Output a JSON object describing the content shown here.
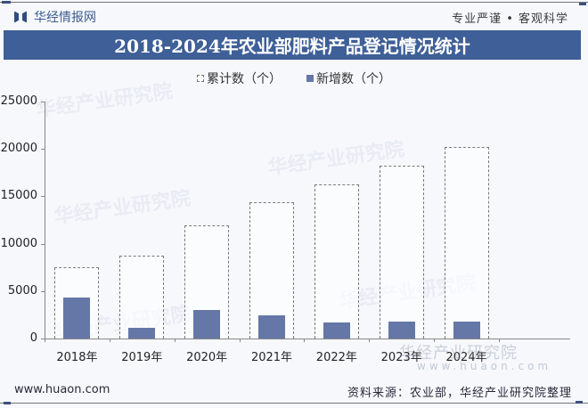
{
  "header": {
    "brand": "华经情报网",
    "slogan": "专业严谨 • 客观科学",
    "title": "2018-2024年农业部肥料产品登记情况统计"
  },
  "legend": {
    "cumulative": "累计数（个）",
    "new": "新增数（个）"
  },
  "footer": {
    "url": "www.huaon.com",
    "source": "资料来源：农业部，华经产业研究院整理"
  },
  "watermark": {
    "text": "华经产业研究院",
    "url": "www.huaon.com"
  },
  "colors": {
    "title_bar": "#3e5f97",
    "new_bar": "#6577a6",
    "cumulative_border": "#7a7a7a"
  },
  "y_ticks": [
    "0",
    "5000",
    "10000",
    "15000",
    "20000",
    "25000"
  ],
  "chart_data": {
    "type": "bar",
    "title": "2018-2024年农业部肥料产品登记情况统计",
    "categories": [
      "2018年",
      "2019年",
      "2020年",
      "2021年",
      "2022年",
      "2023年",
      "2024年"
    ],
    "series": [
      {
        "name": "累计数（个）",
        "style": "dashed-outline",
        "values": [
          7500,
          8700,
          11900,
          14400,
          16300,
          18200,
          20200
        ]
      },
      {
        "name": "新增数（个）",
        "style": "filled",
        "values": [
          4300,
          1100,
          3000,
          2400,
          1700,
          1800,
          1800
        ]
      }
    ],
    "xlabel": "",
    "ylabel": "",
    "ylim": [
      0,
      25000
    ],
    "yticks": [
      0,
      5000,
      10000,
      15000,
      20000,
      25000
    ],
    "grid": false,
    "legend_position": "top-center"
  }
}
